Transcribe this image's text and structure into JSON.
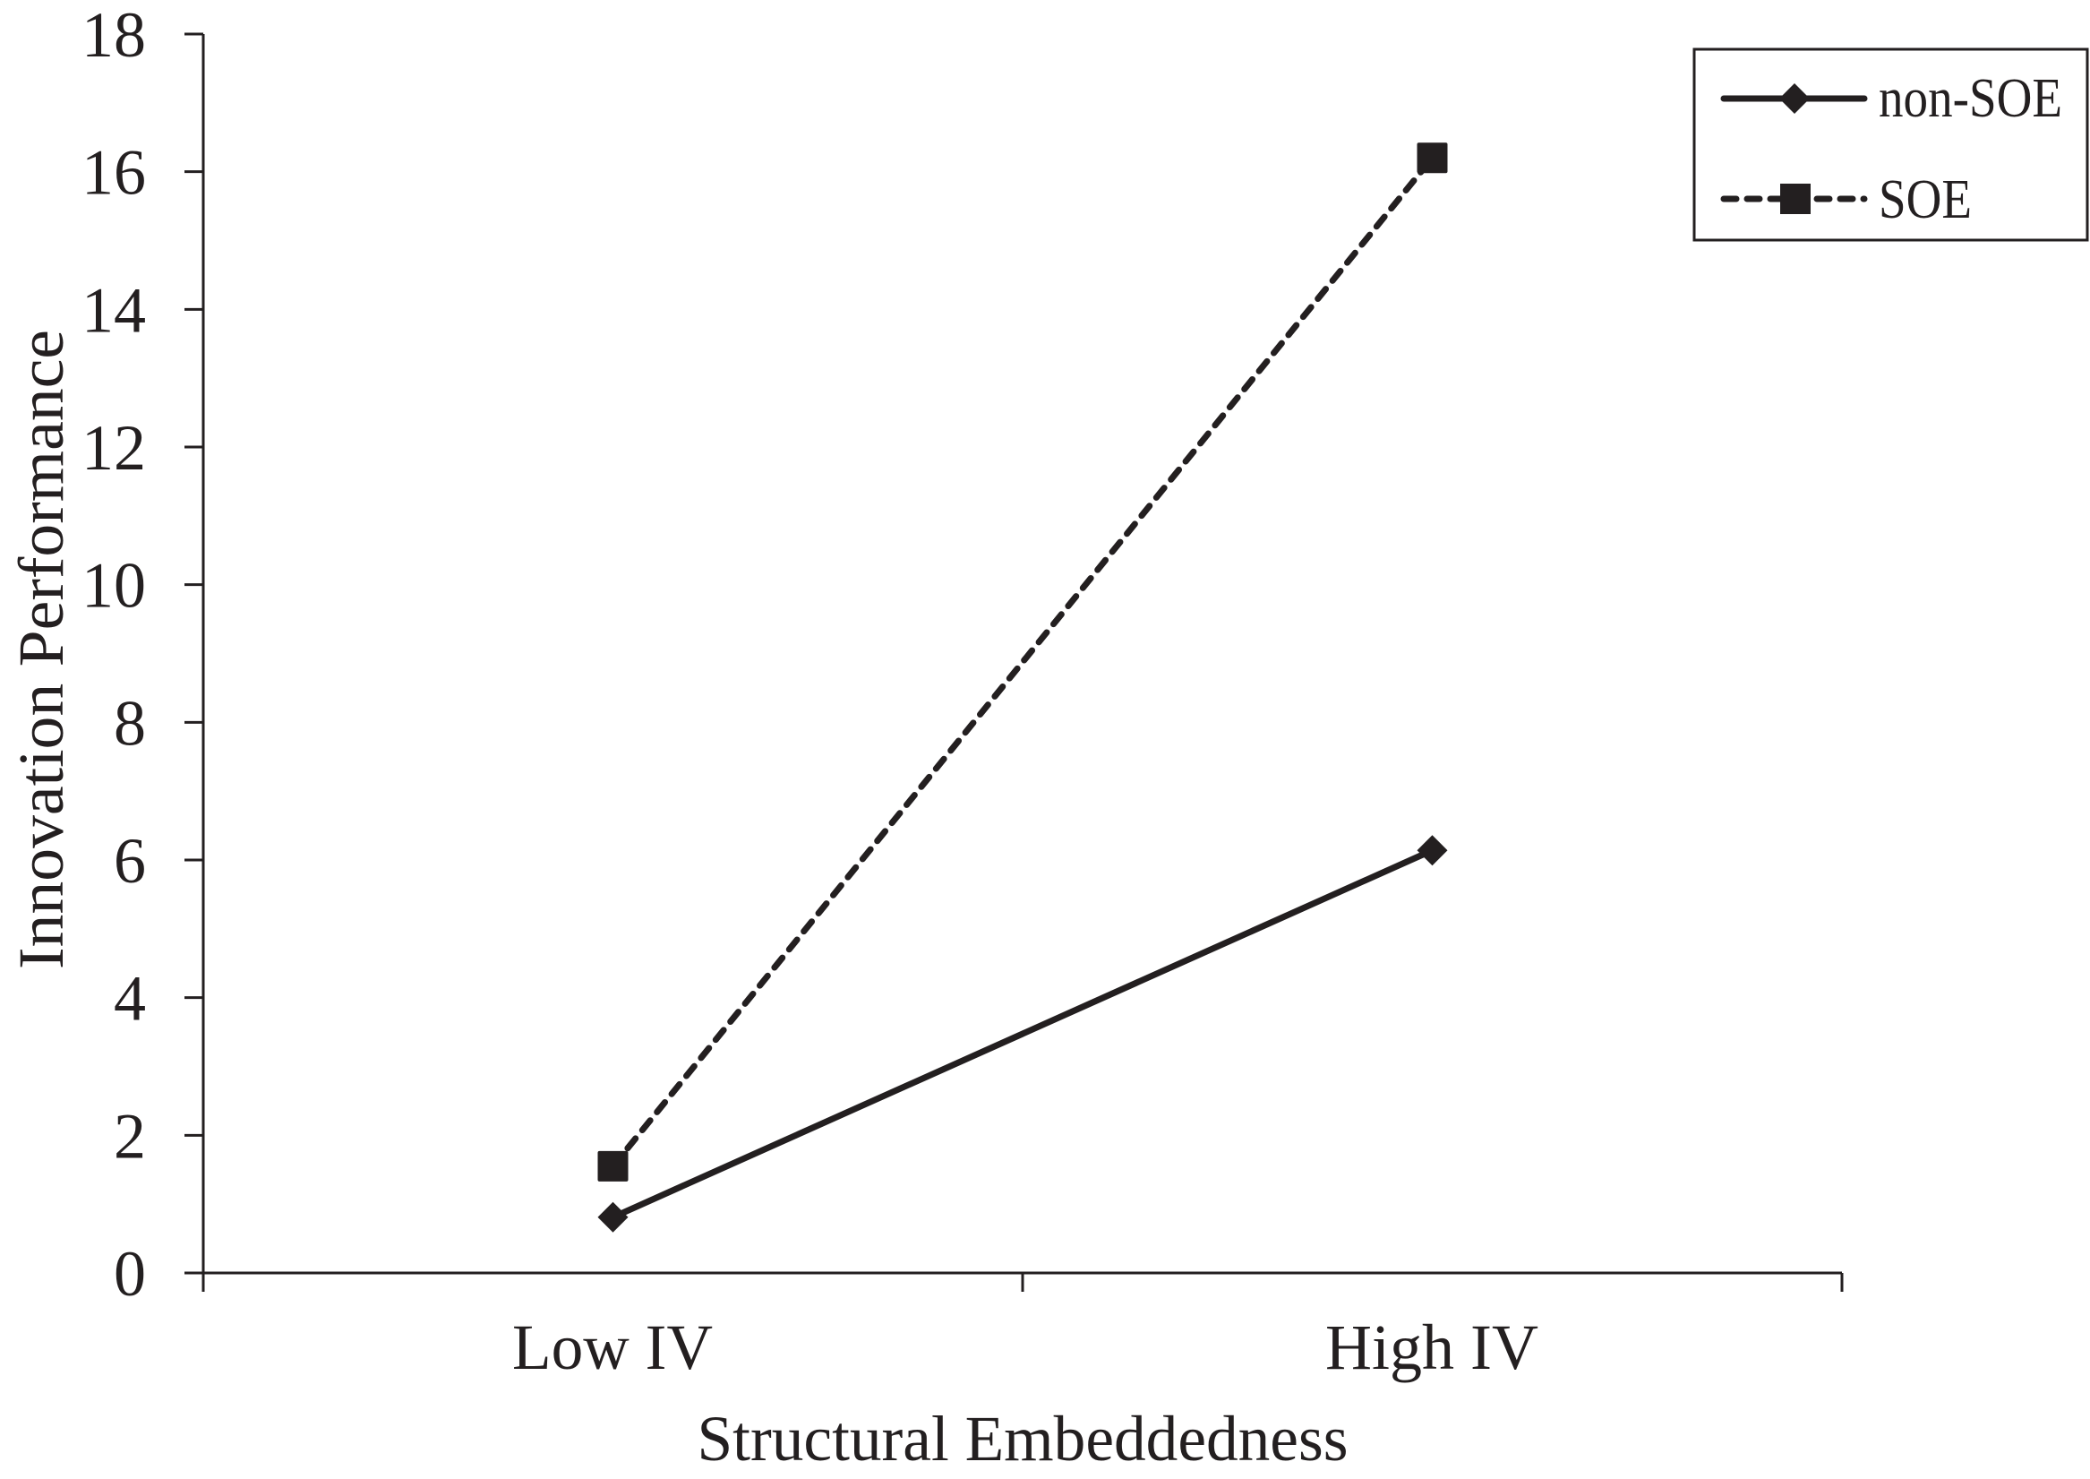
{
  "chart_data": {
    "type": "line",
    "title": "",
    "xlabel": "Structural Embeddedness",
    "ylabel": "Innovation Performance",
    "categories": [
      "Low IV",
      "High IV"
    ],
    "series": [
      {
        "name": "non-SOE",
        "values": [
          0.81,
          6.14
        ],
        "line_style": "solid",
        "marker": "diamond",
        "color": "#231f20"
      },
      {
        "name": "SOE",
        "values": [
          1.55,
          16.2
        ],
        "line_style": "dashed",
        "marker": "square",
        "color": "#231f20"
      }
    ],
    "ylim": [
      0,
      18
    ],
    "yticks": [
      0,
      2,
      4,
      6,
      8,
      10,
      12,
      14,
      16,
      18
    ],
    "grid": false,
    "legend_position": "top-right"
  },
  "axes": {
    "y_title": "Innovation Performance",
    "x_title": "Structural Embeddedness",
    "y_tick_labels": [
      "0",
      "2",
      "4",
      "6",
      "8",
      "10",
      "12",
      "14",
      "16",
      "18"
    ],
    "x_tick_labels": [
      "Low IV",
      "High IV"
    ]
  },
  "legend": {
    "items": [
      {
        "label": "non-SOE",
        "marker": "diamond-icon",
        "line": "solid"
      },
      {
        "label": "SOE",
        "marker": "square-icon",
        "line": "dashed"
      }
    ]
  },
  "colors": {
    "ink": "#231f20",
    "background": "#ffffff"
  }
}
